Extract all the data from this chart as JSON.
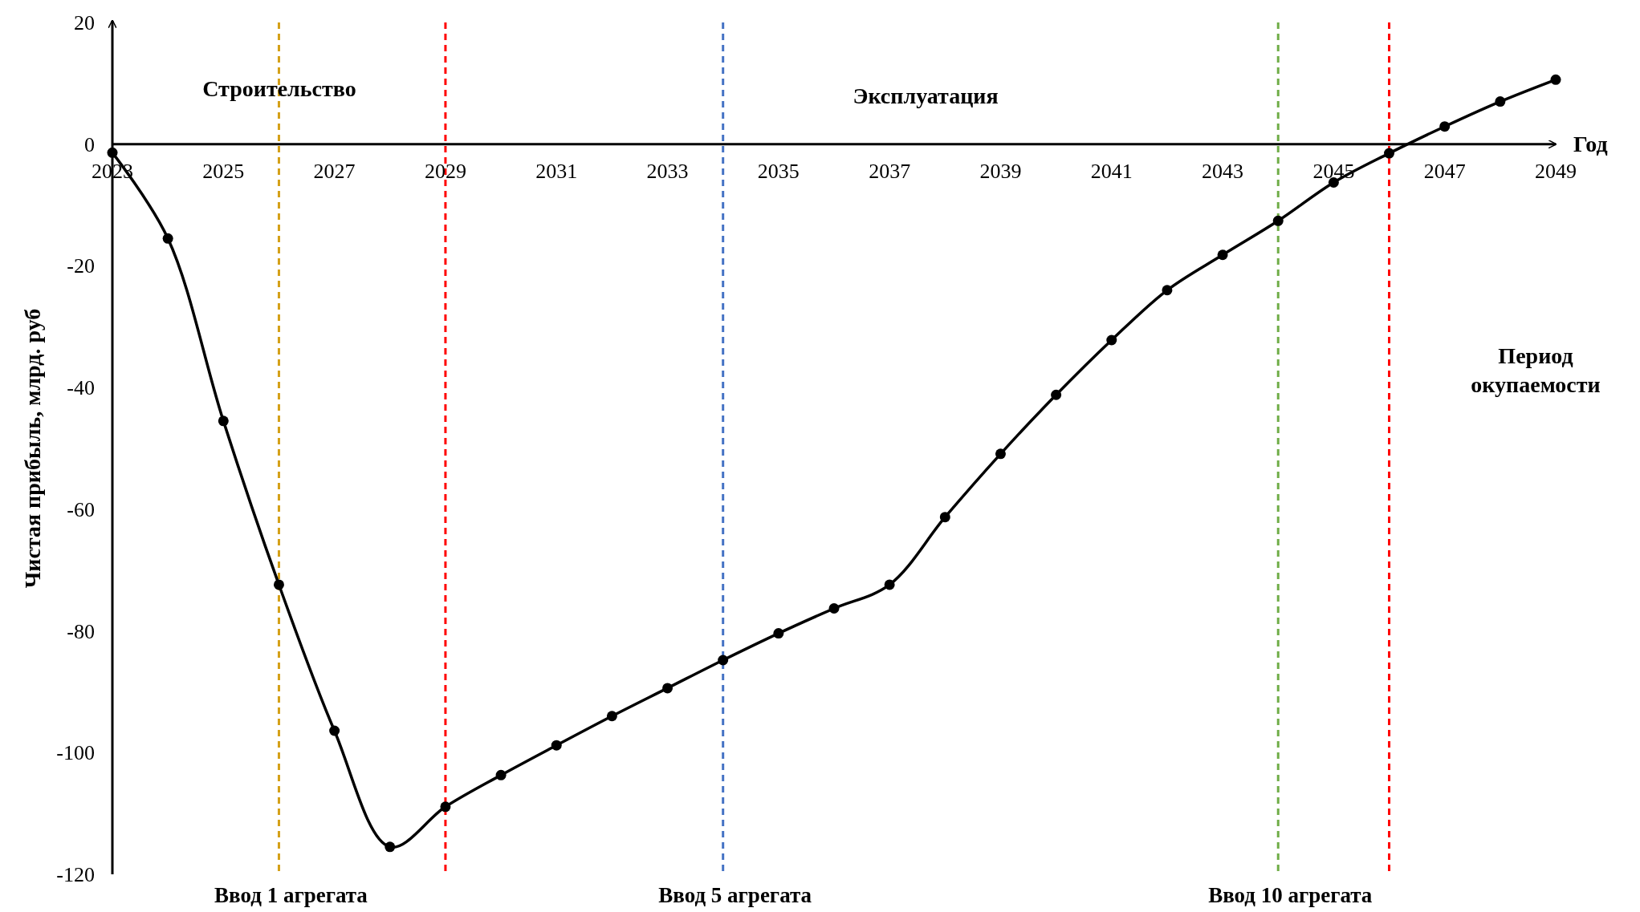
{
  "chart_data": {
    "type": "line",
    "xlabel": "Год",
    "ylabel": "Чистая прибыль, млрд. руб",
    "x": [
      2023,
      2024,
      2025,
      2026,
      2027,
      2028,
      2029,
      2030,
      2031,
      2032,
      2033,
      2034,
      2035,
      2036,
      2037,
      2038,
      2039,
      2040,
      2041,
      2042,
      2043,
      2044,
      2045,
      2046,
      2047,
      2048,
      2049
    ],
    "series": [
      {
        "color": "#000000",
        "values": [
          -1.4,
          -15.5,
          -45.5,
          -72.4,
          -96.4,
          -115.5,
          -108.9,
          -103.7,
          -98.8,
          -94.0,
          -89.4,
          -84.8,
          -80.4,
          -76.3,
          -72.4,
          -61.3,
          -50.9,
          -41.2,
          -32.2,
          -24.0,
          -18.2,
          -12.6,
          -6.3,
          -1.5,
          2.9,
          7.0,
          10.6
        ]
      }
    ],
    "xlim": [
      2023,
      2049
    ],
    "xticks": [
      2023,
      2025,
      2027,
      2029,
      2031,
      2033,
      2035,
      2037,
      2039,
      2041,
      2043,
      2045,
      2047,
      2049
    ],
    "ylim": [
      -120,
      20
    ],
    "yticks": [
      -120,
      -100,
      -80,
      -60,
      -40,
      -20,
      0,
      20
    ],
    "marker": "circle",
    "line_style": "solid",
    "grid": false,
    "ref_lines": [
      {
        "axis": "x",
        "value": 2026,
        "label": "Ввод 1 агрегата",
        "color": "#d4a017",
        "line_style": "dashed"
      },
      {
        "axis": "x",
        "value": 2029,
        "label": null,
        "color": "#ff0000",
        "line_style": "dashed"
      },
      {
        "axis": "x",
        "value": 2034,
        "label": "Ввод 5 агрегата",
        "color": "#4472c4",
        "line_style": "dashed"
      },
      {
        "axis": "x",
        "value": 2044,
        "label": "Ввод 10 агрегата",
        "color": "#70ad47",
        "line_style": "dashed"
      },
      {
        "axis": "x",
        "value": 2046,
        "label": null,
        "color": "#ff0000",
        "line_style": "dashed"
      }
    ],
    "annotations": [
      "Строительство",
      "Эксплуатация",
      "Период окупаемости"
    ]
  }
}
